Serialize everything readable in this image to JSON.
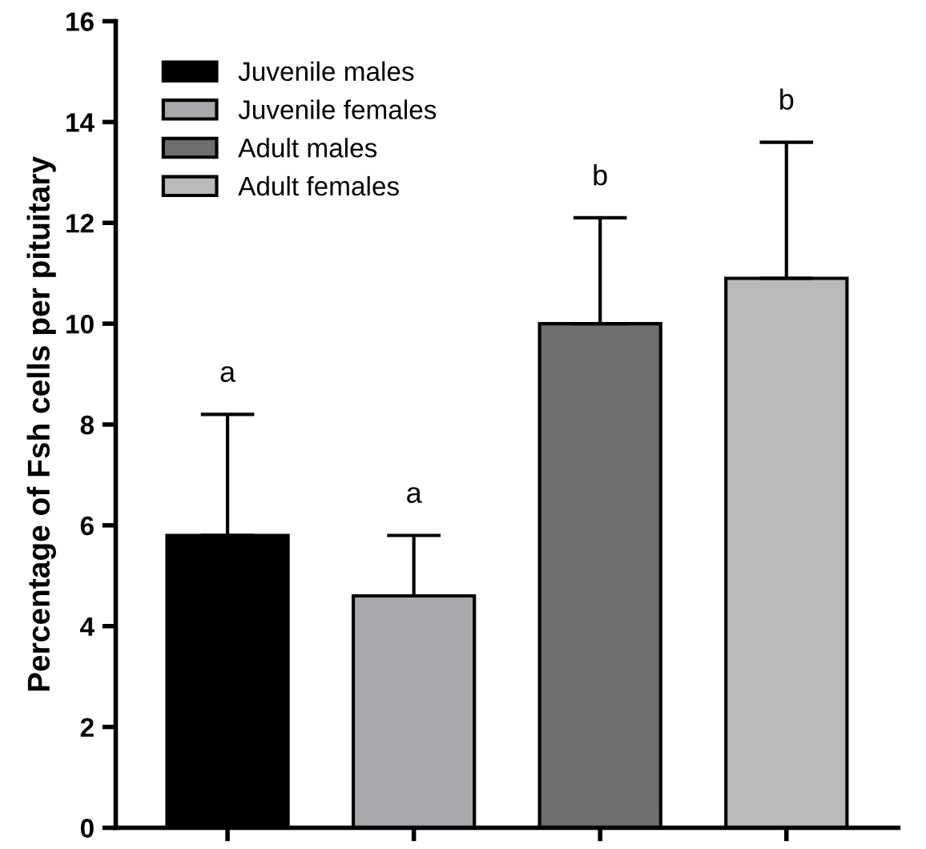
{
  "chart_data": {
    "type": "bar",
    "ylabel": "Percentage of Fsh cells per pituitary",
    "categories": [
      null,
      null,
      null,
      null
    ],
    "series": [
      {
        "name": "Juvenile males",
        "color": "#000000",
        "values": [
          5.8,
          null,
          null,
          null
        ],
        "errors": [
          2.4,
          null,
          null,
          null
        ]
      },
      {
        "name": "Juvenile females",
        "color": "#a7a9ac",
        "values": [
          null,
          4.6,
          null,
          null
        ],
        "errors": [
          null,
          1.2,
          null,
          null
        ]
      },
      {
        "name": "Adult males",
        "color": "#6e6e6e",
        "values": [
          null,
          null,
          10.0,
          null
        ],
        "errors": [
          null,
          null,
          2.1,
          null
        ]
      },
      {
        "name": "Adult females",
        "color": "#b9b9b9",
        "values": [
          null,
          null,
          null,
          10.9
        ],
        "errors": [
          null,
          null,
          null,
          2.7
        ]
      }
    ],
    "annotations": [
      "a",
      "a",
      "b",
      "b"
    ],
    "ylim": [
      0,
      16
    ],
    "yticks": [
      0,
      2,
      4,
      6,
      8,
      10,
      12,
      14,
      16
    ],
    "legend": "top left",
    "grid": false
  }
}
